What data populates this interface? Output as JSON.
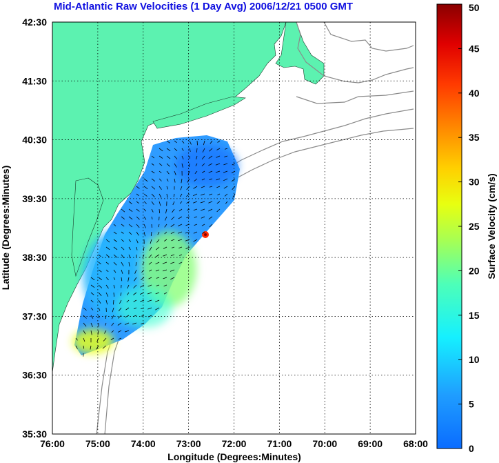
{
  "title": "Mid-Atlantic Raw Velocities (1 Day Avg) 2006/12/21 0500 GMT",
  "x_axis": {
    "label": "Longitude (Degrees:Minutes)",
    "ticks": [
      "76:00",
      "75:00",
      "74:00",
      "73:00",
      "72:00",
      "71:00",
      "70:00",
      "69:00",
      "68:00"
    ]
  },
  "y_axis": {
    "label": "Latitude (Degrees:Minutes)",
    "ticks": [
      "42:30",
      "41:30",
      "40:30",
      "39:30",
      "38:30",
      "37:30",
      "36:30",
      "35:30"
    ]
  },
  "colorbar": {
    "label": "Surface Velocity (cm/s)",
    "ticks": [
      "50",
      "45",
      "40",
      "35",
      "30",
      "25",
      "20",
      "15",
      "10",
      "5",
      "0"
    ],
    "range": [
      0,
      50
    ]
  },
  "map_extent": {
    "lon": [
      -76.0,
      -68.0
    ],
    "lat": [
      35.5,
      42.5
    ]
  },
  "colors": {
    "land": "#5cf2b0",
    "ocean": "#ffffff",
    "title": "#1010e0",
    "grid": "#000000",
    "contour": "#8a8a8a"
  }
}
